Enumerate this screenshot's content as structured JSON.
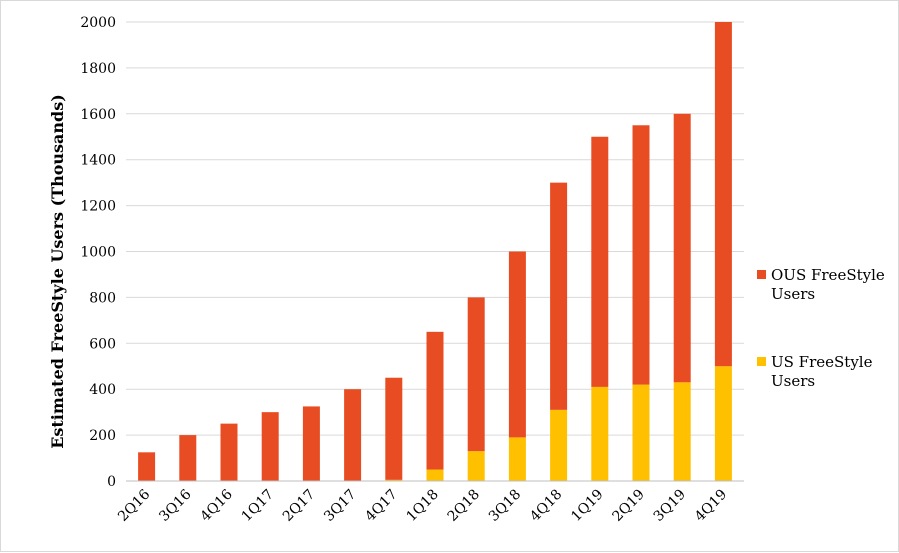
{
  "chart_data": {
    "type": "bar",
    "stacked": true,
    "title": "",
    "xlabel": "",
    "ylabel": "Estimated FreeStyle Users (Thousands)",
    "ylim": [
      0,
      2000
    ],
    "yticks": [
      0,
      200,
      400,
      600,
      800,
      1000,
      1200,
      1400,
      1600,
      1800,
      2000
    ],
    "grid": true,
    "legend_position": "right",
    "categories": [
      "2Q16",
      "3Q16",
      "4Q16",
      "1Q17",
      "2Q17",
      "3Q17",
      "4Q17",
      "1Q18",
      "2Q18",
      "3Q18",
      "4Q18",
      "1Q19",
      "2Q19",
      "3Q19",
      "4Q19"
    ],
    "series": [
      {
        "name": "US FreeStyle Users",
        "color": "#ffc000",
        "values": [
          0,
          0,
          0,
          0,
          0,
          0,
          5,
          50,
          130,
          190,
          310,
          410,
          420,
          430,
          500
        ]
      },
      {
        "name": "OUS FreeStyle Users",
        "color": "#e84c22",
        "values": [
          125,
          200,
          250,
          300,
          325,
          400,
          445,
          600,
          670,
          810,
          990,
          1090,
          1130,
          1170,
          1500
        ]
      }
    ],
    "legend": [
      {
        "lines": [
          "OUS FreeStyle",
          "Users"
        ],
        "color": "#e84c22"
      },
      {
        "lines": [
          "US FreeStyle",
          "Users"
        ],
        "color": "#ffc000"
      }
    ]
  }
}
